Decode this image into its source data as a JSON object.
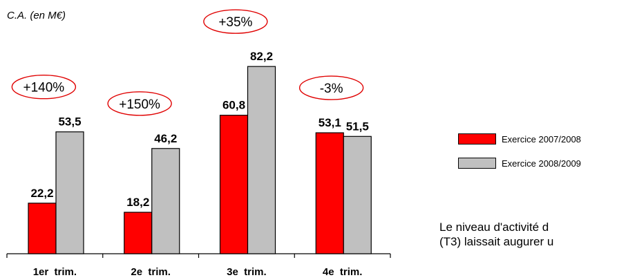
{
  "chart_data": {
    "type": "bar",
    "unit_label": "C.A. (en M€)",
    "categories": [
      "1er  trim.",
      "2e  trim.",
      "3e  trim.",
      "4e  trim."
    ],
    "series": [
      {
        "name": "Exercice 2007/2008",
        "values": [
          22.2,
          18.2,
          60.8,
          53.1
        ],
        "value_labels": [
          "22,2",
          "18,2",
          "60,8",
          "53,1"
        ],
        "color": "#ff0000"
      },
      {
        "name": "Exercice 2008/2009",
        "values": [
          53.5,
          46.2,
          82.2,
          51.5
        ],
        "value_labels": [
          "53,5",
          "46,2",
          "82,2",
          "51,5"
        ],
        "color": "#c0c0c0"
      }
    ],
    "growth_annotations": [
      "+140%",
      "+150%",
      "+35%",
      "-3%"
    ],
    "annotation_color": "#e00000",
    "ylim": [
      0,
      100
    ],
    "grid": false,
    "legend_placement": "right"
  },
  "note": {
    "line1": "Le niveau d'activité d",
    "line2": "(T3) laissait augurer u"
  }
}
